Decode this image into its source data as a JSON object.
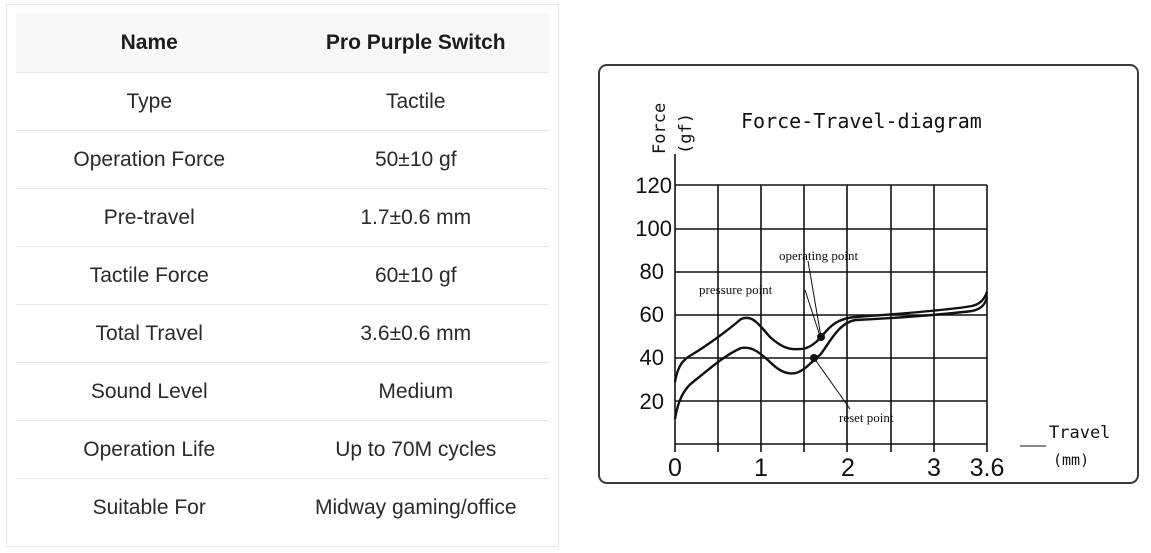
{
  "spec_table": {
    "header": {
      "name": "Name",
      "value": "Pro Purple Switch"
    },
    "rows": [
      {
        "name": "Type",
        "value": "Tactile"
      },
      {
        "name": "Operation Force",
        "value": "50±10 gf"
      },
      {
        "name": "Pre-travel",
        "value": "1.7±0.6 mm"
      },
      {
        "name": "Tactile Force",
        "value": "60±10 gf"
      },
      {
        "name": "Total Travel",
        "value": "3.6±0.6 mm"
      },
      {
        "name": "Sound Level",
        "value": "Medium"
      },
      {
        "name": "Operation Life",
        "value": "Up to 70M cycles"
      },
      {
        "name": "Suitable For",
        "value": "Midway gaming/office"
      }
    ]
  },
  "diagram": {
    "title": "Force-Travel-diagram",
    "y_label": "Force",
    "y_unit": "(gf)",
    "x_label": "Travel",
    "x_unit": "(mm)",
    "y_ticks": [
      "120",
      "100",
      "80",
      "60",
      "40",
      "20"
    ],
    "x_ticks": [
      "0",
      "1",
      "2",
      "3",
      "3.6"
    ],
    "annotations": {
      "operating": "operating point",
      "pressure": "pressure point",
      "reset": "reset point"
    }
  }
}
